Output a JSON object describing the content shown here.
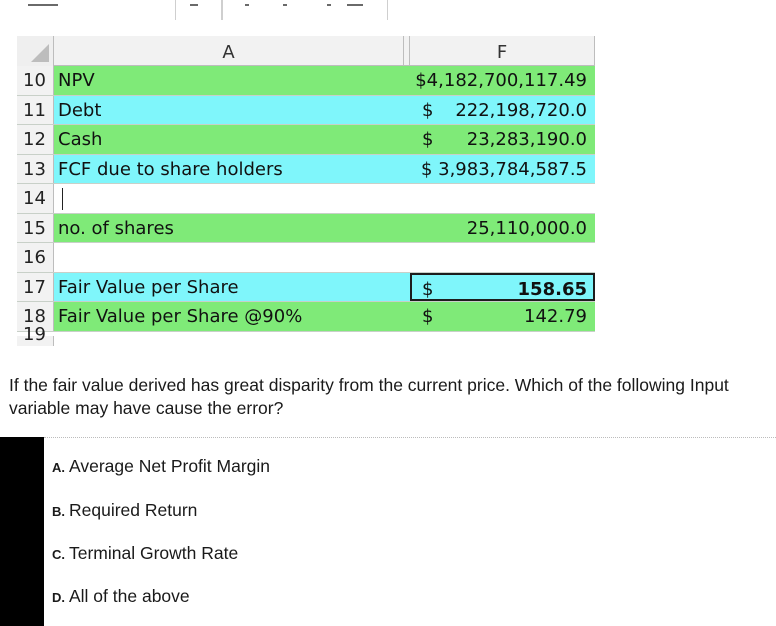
{
  "spreadsheet": {
    "columns": {
      "a": "A",
      "f": "F"
    },
    "rows": [
      {
        "num": "10",
        "label": "NPV",
        "currency": "",
        "value": "$4,182,700,117.49",
        "fill": "green"
      },
      {
        "num": "11",
        "label": "Debt",
        "currency": "$",
        "value": "222,198,720.0",
        "fill": "cyan"
      },
      {
        "num": "12",
        "label": "Cash",
        "currency": "$",
        "value": "23,283,190.0",
        "fill": "green"
      },
      {
        "num": "13",
        "label": "FCF due to share holders",
        "currency": "",
        "value": "$ 3,983,784,587.5",
        "fill": "cyan"
      },
      {
        "num": "14",
        "label": "",
        "currency": "",
        "value": "",
        "fill": "white"
      },
      {
        "num": "15",
        "label": "no. of shares",
        "currency": "",
        "value": "25,110,000.0",
        "fill": "green"
      },
      {
        "num": "16",
        "label": "",
        "currency": "",
        "value": "",
        "fill": "white"
      },
      {
        "num": "17",
        "label": "Fair Value per Share",
        "currency": "$",
        "value": "158.65",
        "fill": "cyan"
      },
      {
        "num": "18",
        "label": "Fair Value per Share @90%",
        "currency": "$",
        "value": "142.79",
        "fill": "green"
      }
    ],
    "cut_row_num": "19"
  },
  "question": {
    "text": "If the fair value derived has great disparity from the current price. Which of the following Input variable may have cause the error?"
  },
  "options": [
    {
      "letter": "A.",
      "label": "Average Net Profit Margin"
    },
    {
      "letter": "B.",
      "label": "Required Return"
    },
    {
      "letter": "C.",
      "label": "Terminal Growth Rate"
    },
    {
      "letter": "D.",
      "label": "All of the above"
    }
  ],
  "colors": {
    "green_fill": "#7fea78",
    "cyan_fill": "#7ff6fb",
    "header_gray": "#f2f2f2",
    "left_bar": "#000000"
  }
}
